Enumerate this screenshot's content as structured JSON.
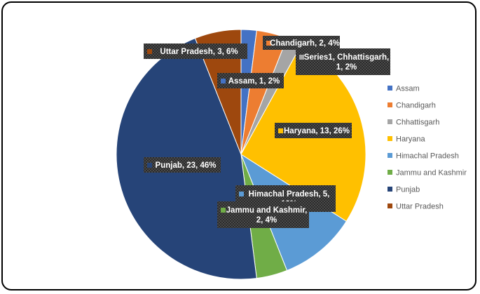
{
  "chart_data": {
    "type": "pie",
    "series_name": "Series1",
    "categories": [
      "Assam",
      "Chandigarh",
      "Chhattisgarh",
      "Haryana",
      "Himachal Pradesh",
      "Jammu and Kashmir",
      "Punjab",
      "Uttar Pradesh"
    ],
    "values": [
      1,
      2,
      1,
      13,
      5,
      2,
      23,
      3
    ],
    "percents": [
      "2%",
      "4%",
      "2%",
      "26%",
      "10%",
      "4%",
      "46%",
      "6%"
    ],
    "colors": [
      "#4472C4",
      "#ED7D31",
      "#A5A5A5",
      "#FFC000",
      "#5B9BD5",
      "#70AD47",
      "#264478",
      "#9E480E"
    ],
    "data_labels": [
      [
        "Assam, 1, 2%"
      ],
      [
        "Chandigarh, 2, 4%"
      ],
      [
        "Series1, Chhattisgarh,",
        "1, 2%"
      ],
      [
        "Haryana, 13, 26%"
      ],
      [
        "Himachal Pradesh, 5,",
        "10%"
      ],
      [
        "Jammu and Kashmir,",
        "2, 4%"
      ],
      [
        "Punjab, 23, 46%"
      ],
      [
        "Uttar Pradesh, 3, 6%"
      ]
    ],
    "legend_position": "right"
  }
}
